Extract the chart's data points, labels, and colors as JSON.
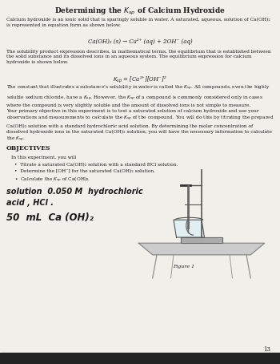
{
  "title": "Determining the $K_{sp}$ of Calcium Hydroxide",
  "bg_color": "#f0efea",
  "text_color": "#1a1a1a",
  "page_number": "13",
  "para1": "Calcium hydroxide is an ionic solid that is sparingly soluble in water. A saturated, aqueous, solution of Ca(OH)₂\nis represented in equation form as shown below.",
  "equation1": "Ca(OH)₂ (s) → Ca²⁺ (aq) + 2OH⁻ (aq)",
  "para2": "The solubility product expression describes, in mathematical terms, the equilibrium that is established between\nthe solid substance and its dissolved ions in an aqueous system. The equilibrium expression for calcium\nhydroxide is shown below.",
  "equation2": "$K_{sp}$ = [Ca²⁺][OH⁻]²",
  "para3": "The constant that illustrates a substance's solubility in water is called the $K_{sp}$. All compounds, even the highly\nsoluble sodium chloride, have a $K_{sp}$. However, the $K_{sp}$ of a compound is commonly considered only in cases\nwhere the compound is very slightly soluble and the amount of dissolved ions is not simple to measure.",
  "para4": "Your primary objective in this experiment is to test a saturated solution of calcium hydroxide and use your\nobservations and measurements to calculate the $K_{sp}$ of the compound. You will do this by titrating the prepared\nCa(OH)₂ solution with a standard hydrochloric acid solution. By determining the molar concentration of\ndissolved hydroxide ions in the saturated Ca(OH)₂ solution, you will have the necessary information to calculate\nthe $K_{sp}$.",
  "objectives_title": "OBJECTIVES",
  "objectives_intro": "In this experiment, you will",
  "bullet1": "•  Titrate a saturated Ca(OH)₂ solution with a standard HCl solution.",
  "bullet2": "•  Determine the [OH⁻] for the saturated Ca(OH)₂ solution.",
  "bullet3": "•  Calculate the $K_{sp}$ of Ca(OH)₂.",
  "handwritten1": "solution  0.050 M  hydrochloric",
  "handwritten2": "acid , HCl .",
  "handwritten3": "50  mL  Ca (OH)₂",
  "figure_label": "Figure 1"
}
